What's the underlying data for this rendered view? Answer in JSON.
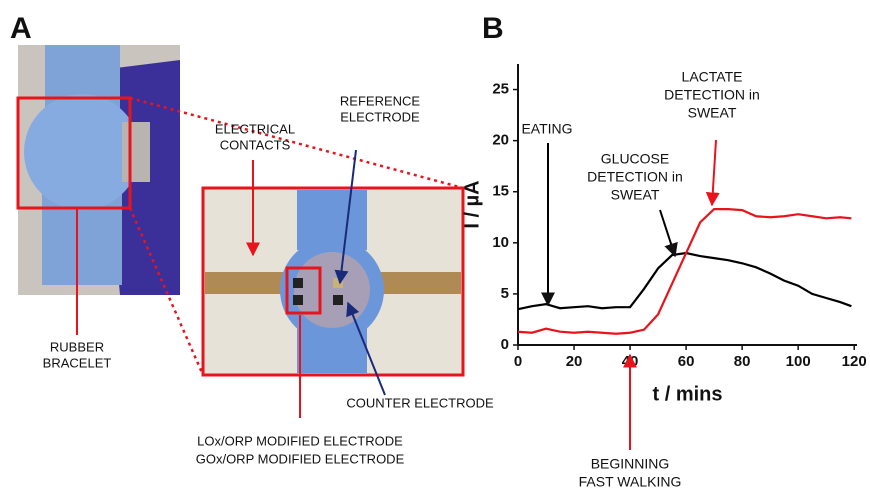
{
  "panel_a": {
    "label": "A",
    "electrical_contacts": [
      "ELECTRICAL",
      "CONTACTS"
    ],
    "reference_electrode": [
      "REFERENCE",
      "ELECTRODE"
    ],
    "rubber_bracelet": [
      "RUBBER",
      "BRACELET"
    ],
    "counter_electrode": "COUNTER ELECTRODE",
    "modified_electrodes": [
      "LOx/ORP MODIFIED ELECTRODE",
      "GOx/ORP MODIFIED ELECTRODE"
    ]
  },
  "chart_data": {
    "type": "line",
    "panel_label": "B",
    "x_label": "t / mins",
    "y_label": "I / µA",
    "x": [
      0,
      5,
      10,
      15,
      20,
      25,
      30,
      35,
      40,
      45,
      50,
      55,
      60,
      65,
      70,
      75,
      80,
      85,
      90,
      95,
      100,
      105,
      110,
      115,
      119
    ],
    "series": [
      {
        "color": "#000000",
        "values": [
          3.5,
          3.8,
          4.0,
          3.6,
          3.7,
          3.8,
          3.6,
          3.7,
          3.7,
          5.5,
          7.5,
          8.8,
          9.0,
          8.7,
          8.5,
          8.3,
          8.0,
          7.6,
          7.0,
          6.3,
          5.8,
          5.0,
          4.6,
          4.2,
          3.8
        ]
      },
      {
        "color": "#e8141c",
        "values": [
          1.3,
          1.2,
          1.6,
          1.3,
          1.2,
          1.3,
          1.2,
          1.1,
          1.2,
          1.5,
          3.0,
          6.0,
          9.0,
          12.0,
          13.3,
          13.3,
          13.2,
          12.6,
          12.5,
          12.6,
          12.8,
          12.6,
          12.4,
          12.5,
          12.4
        ]
      }
    ],
    "xlim": [
      0,
      121
    ],
    "ylim": [
      0,
      27.5
    ],
    "xticks": [
      0,
      20,
      40,
      60,
      80,
      100,
      120
    ],
    "yticks": [
      0,
      5,
      10,
      15,
      20,
      25
    ],
    "annotations": [
      {
        "text": [
          "EATING"
        ],
        "color": "#000000"
      },
      {
        "text": [
          "GLUCOSE",
          "DETECTION in",
          "SWEAT"
        ],
        "color": "#000000"
      },
      {
        "text": [
          "LACTATE",
          "DETECTION in",
          "SWEAT"
        ],
        "color": "#e8141c"
      },
      {
        "text": [
          "BEGINNING",
          "FAST WALKING"
        ],
        "color": "#e8141c"
      }
    ]
  }
}
